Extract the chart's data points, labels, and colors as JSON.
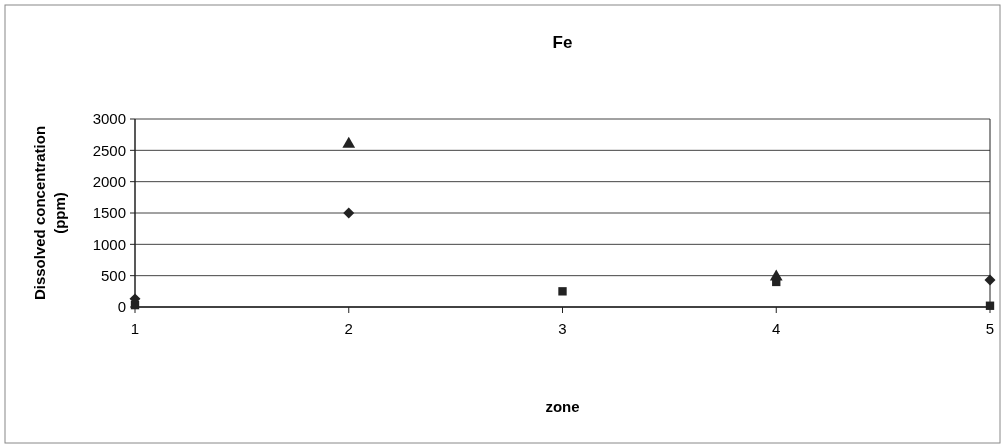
{
  "chart_data": {
    "type": "scatter",
    "title": "Fe",
    "xlabel": "zone",
    "ylabel": "Dissolved concentration\n(ppm)",
    "x": [
      1,
      2,
      3,
      4,
      5
    ],
    "series": [
      {
        "color": "#222222",
        "marker": "square",
        "values": [
          30,
          null,
          250,
          400,
          20
        ]
      },
      {
        "color": "#222222",
        "marker": "diamond",
        "values": [
          130,
          1500,
          null,
          null,
          430
        ]
      },
      {
        "color": "#222222",
        "marker": "triangle",
        "values": [
          null,
          2600,
          null,
          480,
          null
        ]
      }
    ],
    "xlim": [
      1,
      5
    ],
    "xticks": [
      1,
      2,
      3,
      4,
      5
    ],
    "ylim": [
      0,
      3000
    ],
    "yticks": [
      0,
      500,
      1000,
      1500,
      2000,
      2500,
      3000
    ],
    "grid": "y"
  }
}
